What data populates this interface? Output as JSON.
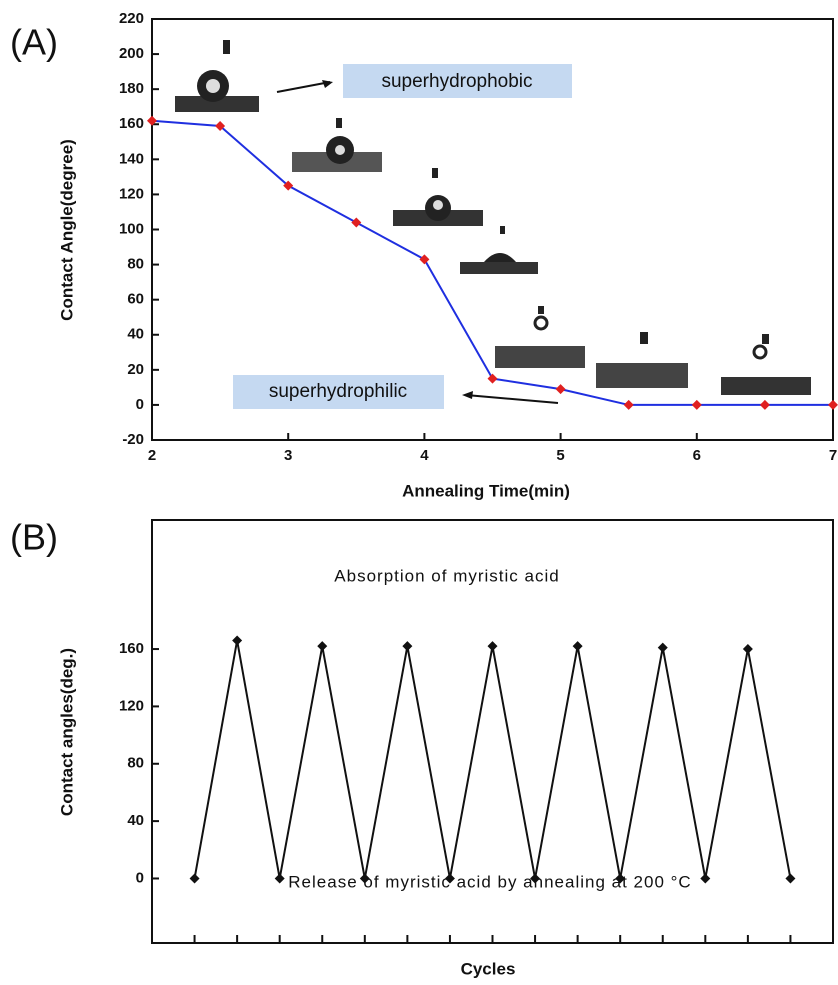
{
  "chart_data": [
    {
      "type": "line",
      "panel": "(A)",
      "x_label": "Annealing Time(min)",
      "y_label": "Contact Angle(degree)",
      "x": [
        2,
        2.5,
        3,
        3.5,
        4,
        4.5,
        5,
        5.5,
        6,
        6.5,
        7
      ],
      "values": [
        162,
        159,
        125,
        104,
        83,
        15,
        9,
        0,
        0,
        0,
        0
      ],
      "color": "#1f2fe0",
      "marker_color": "#e02020",
      "xlim": [
        2,
        7
      ],
      "xticks": [
        2,
        3,
        4,
        5,
        6,
        7
      ],
      "ylim": [
        -20,
        220
      ],
      "yticks": [
        -20,
        0,
        20,
        40,
        60,
        80,
        100,
        120,
        140,
        160,
        180,
        200,
        220
      ],
      "annotations": [
        "superhydrophobic",
        "superhydrophilic"
      ]
    },
    {
      "type": "line",
      "panel": "(B)",
      "x_label": "Cycles",
      "y_label": "Contact angles(deg.)",
      "categories": [
        null,
        null,
        null,
        null,
        null,
        null,
        null,
        null,
        null,
        null,
        null,
        null,
        null,
        null,
        null
      ],
      "values": [
        0,
        166,
        0,
        162,
        0,
        162,
        0,
        162,
        0,
        162,
        0,
        161,
        0,
        160,
        0
      ],
      "color": "#111111",
      "marker_color": "#111111",
      "ylim": [
        -45,
        250
      ],
      "yticks": [
        0,
        40,
        80,
        120,
        160
      ],
      "annotations": [
        "Absorption of myristic acid",
        "Release of myristic acid by annealing at 200 °C"
      ]
    }
  ]
}
